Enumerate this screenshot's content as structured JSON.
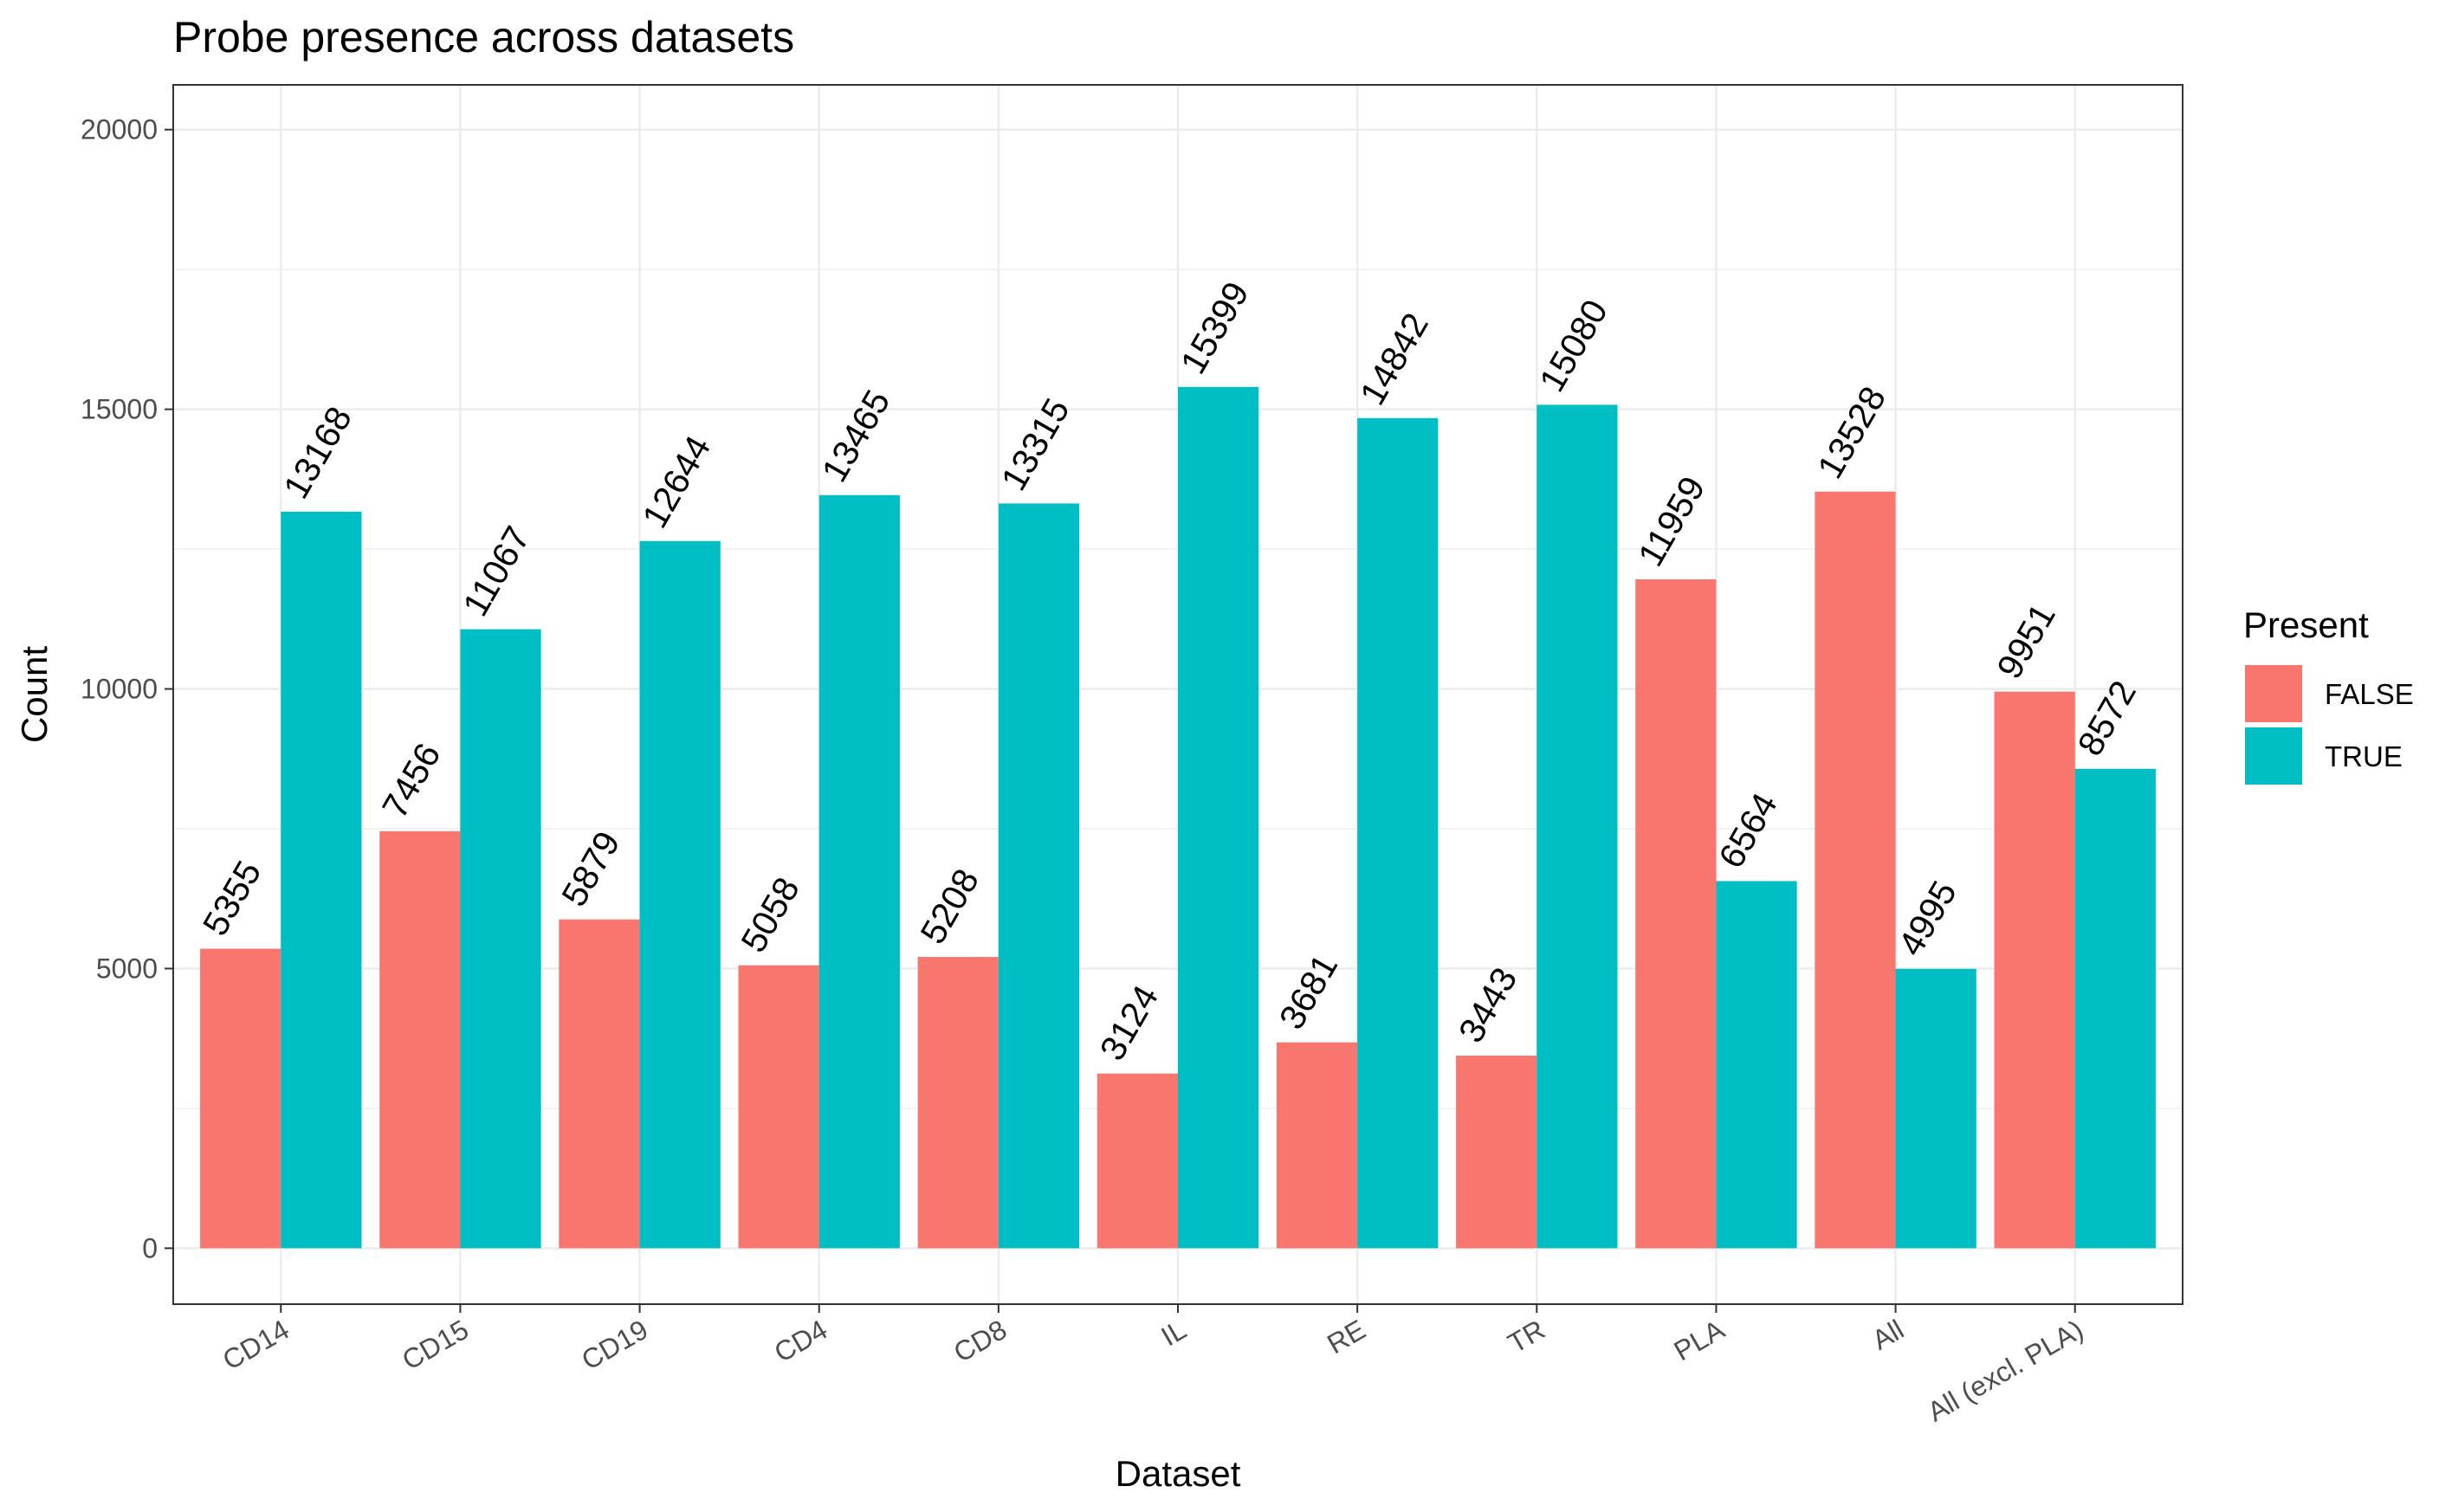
{
  "colors": {
    "false": "#F8766D",
    "true": "#00BFC4",
    "grid": "#ebebeb",
    "panel_border": "#333333"
  },
  "chart_data": {
    "type": "bar",
    "title": "Probe presence across datasets",
    "xlabel": "Dataset",
    "ylabel": "Count",
    "ylim": [
      -1000,
      20800
    ],
    "yticks": [
      0,
      5000,
      10000,
      15000,
      20000
    ],
    "ytick_labels": [
      "0",
      "5000",
      "10000",
      "15000",
      "20000"
    ],
    "grid": true,
    "legend_position": "right",
    "legend_title": "Present",
    "categories": [
      "CD14",
      "CD15",
      "CD19",
      "CD4",
      "CD8",
      "IL",
      "RE",
      "TR",
      "PLA",
      "All",
      "All (excl. PLA)"
    ],
    "series": [
      {
        "name": "FALSE",
        "values": [
          5355,
          7456,
          5879,
          5058,
          5208,
          3124,
          3681,
          3443,
          11959,
          13528,
          9951
        ]
      },
      {
        "name": "TRUE",
        "values": [
          13168,
          11067,
          12644,
          13465,
          13315,
          15399,
          14842,
          15080,
          6564,
          4995,
          8572
        ]
      }
    ]
  }
}
